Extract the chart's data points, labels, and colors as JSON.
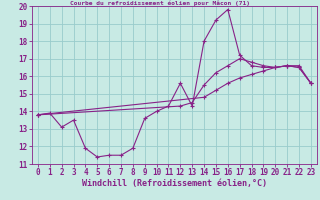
{
  "title": "Courbe du refroidissement éolien pour Mâcon (71)",
  "xlabel": "Windchill (Refroidissement éolien,°C)",
  "bg_color": "#c8eae4",
  "line_color": "#882288",
  "grid_color": "#99cccc",
  "xlim": [
    -0.5,
    23.5
  ],
  "ylim": [
    11,
    20
  ],
  "xticks": [
    0,
    1,
    2,
    3,
    4,
    5,
    6,
    7,
    8,
    9,
    10,
    11,
    12,
    13,
    14,
    15,
    16,
    17,
    18,
    19,
    20,
    21,
    22,
    23
  ],
  "yticks": [
    11,
    12,
    13,
    14,
    15,
    16,
    17,
    18,
    19,
    20
  ],
  "series1_x": [
    0,
    1,
    2,
    3,
    4,
    5,
    6,
    7,
    8,
    9,
    10,
    11,
    12,
    13,
    14,
    15,
    16,
    17,
    18,
    19,
    20,
    21,
    22,
    23
  ],
  "series1_y": [
    13.8,
    13.9,
    13.1,
    13.5,
    11.9,
    11.4,
    11.5,
    11.5,
    11.9,
    13.6,
    14.0,
    14.3,
    15.6,
    14.3,
    18.0,
    19.2,
    19.8,
    17.2,
    16.6,
    16.5,
    16.5,
    16.6,
    16.5,
    15.6
  ],
  "series2_x": [
    0,
    14,
    15,
    16,
    17,
    18,
    19,
    20,
    21,
    22,
    23
  ],
  "series2_y": [
    13.8,
    14.8,
    15.2,
    15.6,
    15.9,
    16.1,
    16.3,
    16.5,
    16.6,
    16.6,
    15.6
  ],
  "series3_x": [
    0,
    12,
    13,
    14,
    15,
    16,
    17,
    18,
    19,
    20,
    21,
    22,
    23
  ],
  "series3_y": [
    13.8,
    14.3,
    14.5,
    15.5,
    16.2,
    16.6,
    17.0,
    16.8,
    16.6,
    16.5,
    16.6,
    16.5,
    15.6
  ],
  "tick_fontsize": 5.5,
  "xlabel_fontsize": 6.0
}
